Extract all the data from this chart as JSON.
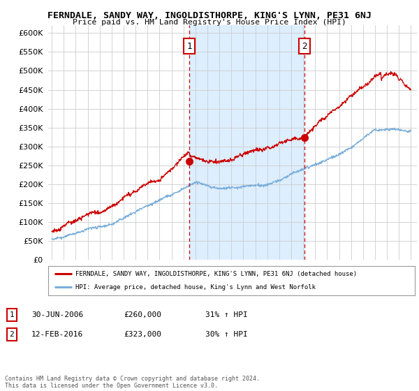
{
  "title": "FERNDALE, SANDY WAY, INGOLDISTHORPE, KING'S LYNN, PE31 6NJ",
  "subtitle": "Price paid vs. HM Land Registry's House Price Index (HPI)",
  "legend_line1": "FERNDALE, SANDY WAY, INGOLDISTHORPE, KING'S LYNN, PE31 6NJ (detached house)",
  "legend_line2": "HPI: Average price, detached house, King's Lynn and West Norfolk",
  "transaction1_label": "1",
  "transaction1_date": "30-JUN-2006",
  "transaction1_price": "£260,000",
  "transaction1_hpi": "31% ↑ HPI",
  "transaction1_year": 2006.5,
  "transaction1_value": 260000,
  "transaction2_label": "2",
  "transaction2_date": "12-FEB-2016",
  "transaction2_price": "£323,000",
  "transaction2_hpi": "30% ↑ HPI",
  "transaction2_year": 2016.12,
  "transaction2_value": 323000,
  "footnote": "Contains HM Land Registry data © Crown copyright and database right 2024.\nThis data is licensed under the Open Government Licence v3.0.",
  "red_color": "#cc0000",
  "blue_color": "#7aaedb",
  "shade_color": "#ddeeff",
  "grid_color": "#cccccc",
  "bg_color": "#ffffff",
  "ylim_min": 0,
  "ylim_max": 620000,
  "xlim_min": 1994.7,
  "xlim_max": 2025.5
}
